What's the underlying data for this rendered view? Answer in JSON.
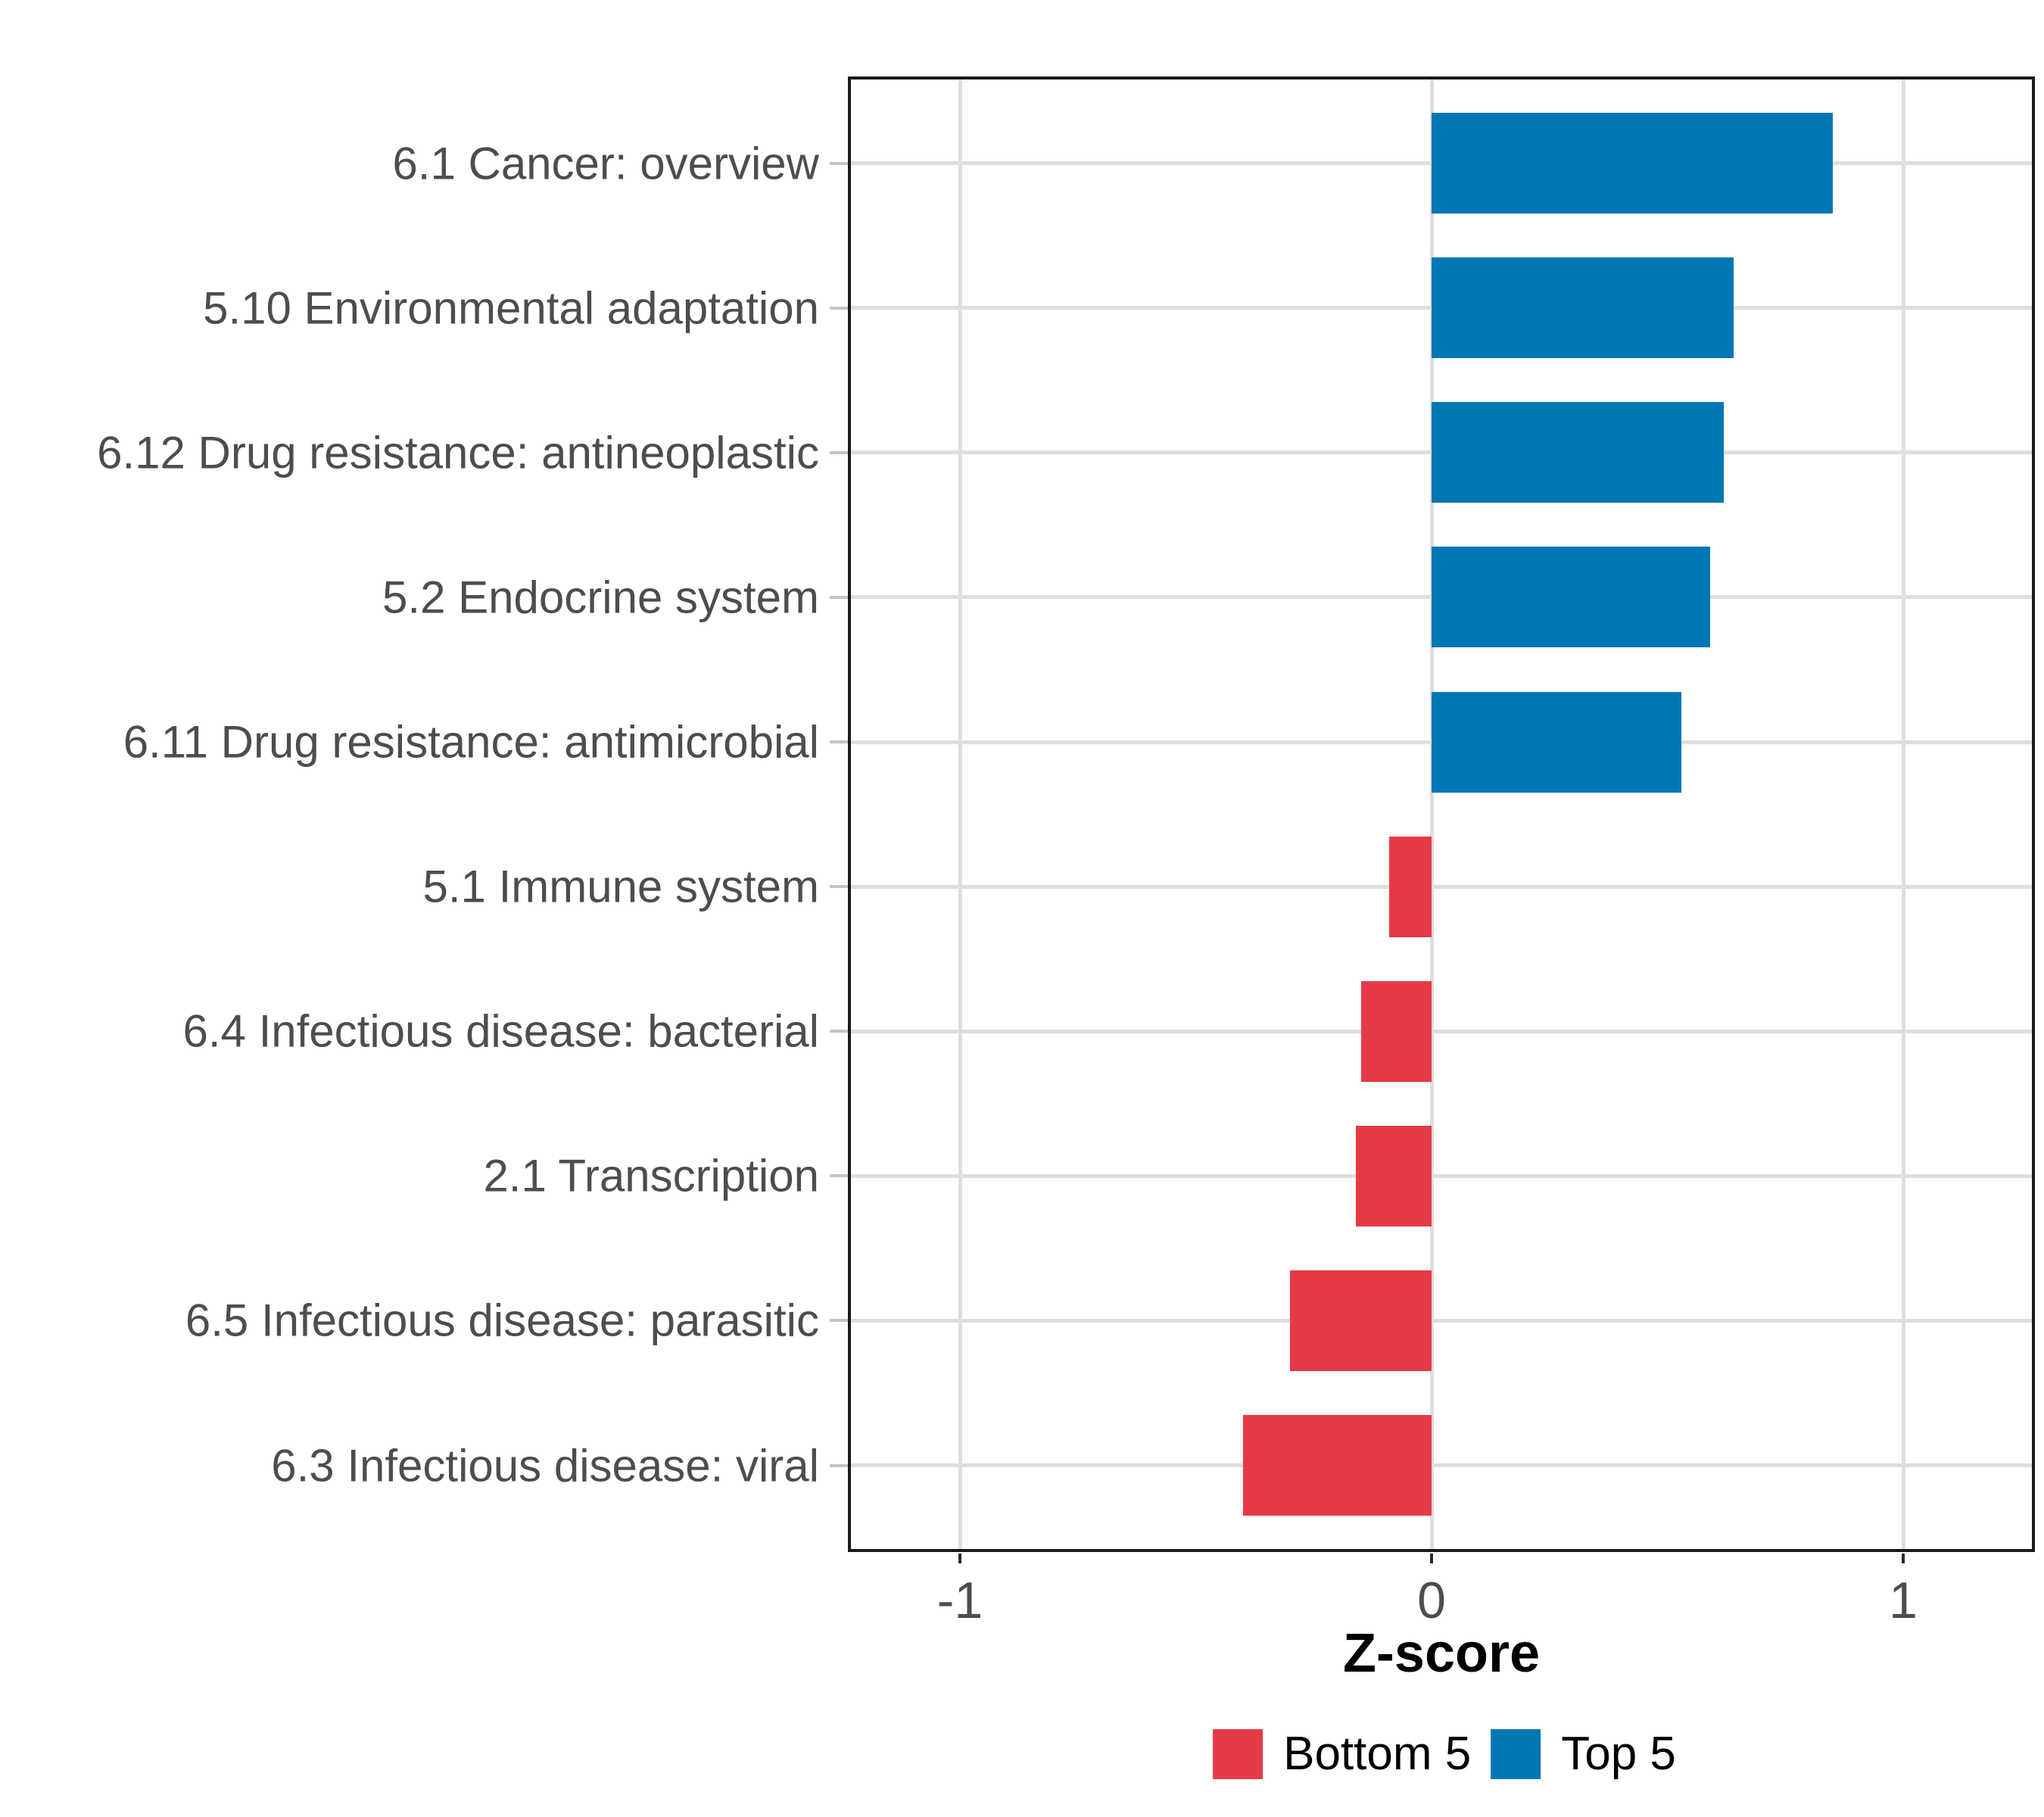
{
  "chart_data": {
    "type": "bar",
    "orientation": "horizontal",
    "title": "",
    "xlabel": "Z-score",
    "ylabel": "",
    "categories": [
      "6.1 Cancer: overview",
      "5.10 Environmental adaptation",
      "6.12 Drug resistance: antineoplastic",
      "5.2 Endocrine system",
      "6.11 Drug resistance: antimicrobial",
      "5.1 Immune system",
      "6.4 Infectious disease: bacterial",
      "2.1 Transcription",
      "6.5 Infectious disease: parasitic",
      "6.3 Infectious disease: viral"
    ],
    "values": [
      0.85,
      0.64,
      0.62,
      0.59,
      0.53,
      -0.09,
      -0.15,
      -0.16,
      -0.3,
      -0.4
    ],
    "groups": [
      "Top 5",
      "Top 5",
      "Top 5",
      "Top 5",
      "Top 5",
      "Bottom 5",
      "Bottom 5",
      "Bottom 5",
      "Bottom 5",
      "Bottom 5"
    ],
    "x_ticks": [
      -1,
      0,
      1
    ],
    "x_tick_labels": [
      "-1",
      "0",
      "1"
    ],
    "xlim": [
      -1.24,
      1.28
    ],
    "grid": "major-vertical-and-row-lines",
    "legend_position": "bottom",
    "legend": [
      {
        "label": "Bottom 5",
        "color": "#E63946"
      },
      {
        "label": "Top 5",
        "color": "#0077B5"
      }
    ]
  },
  "colors": {
    "top5": "#0077B5",
    "bottom5": "#E63946",
    "gridline": "#DEDEDE",
    "panel_border": "#1A1A1A",
    "axis_text": "#4D4D4D",
    "axis_title": "#000000"
  }
}
